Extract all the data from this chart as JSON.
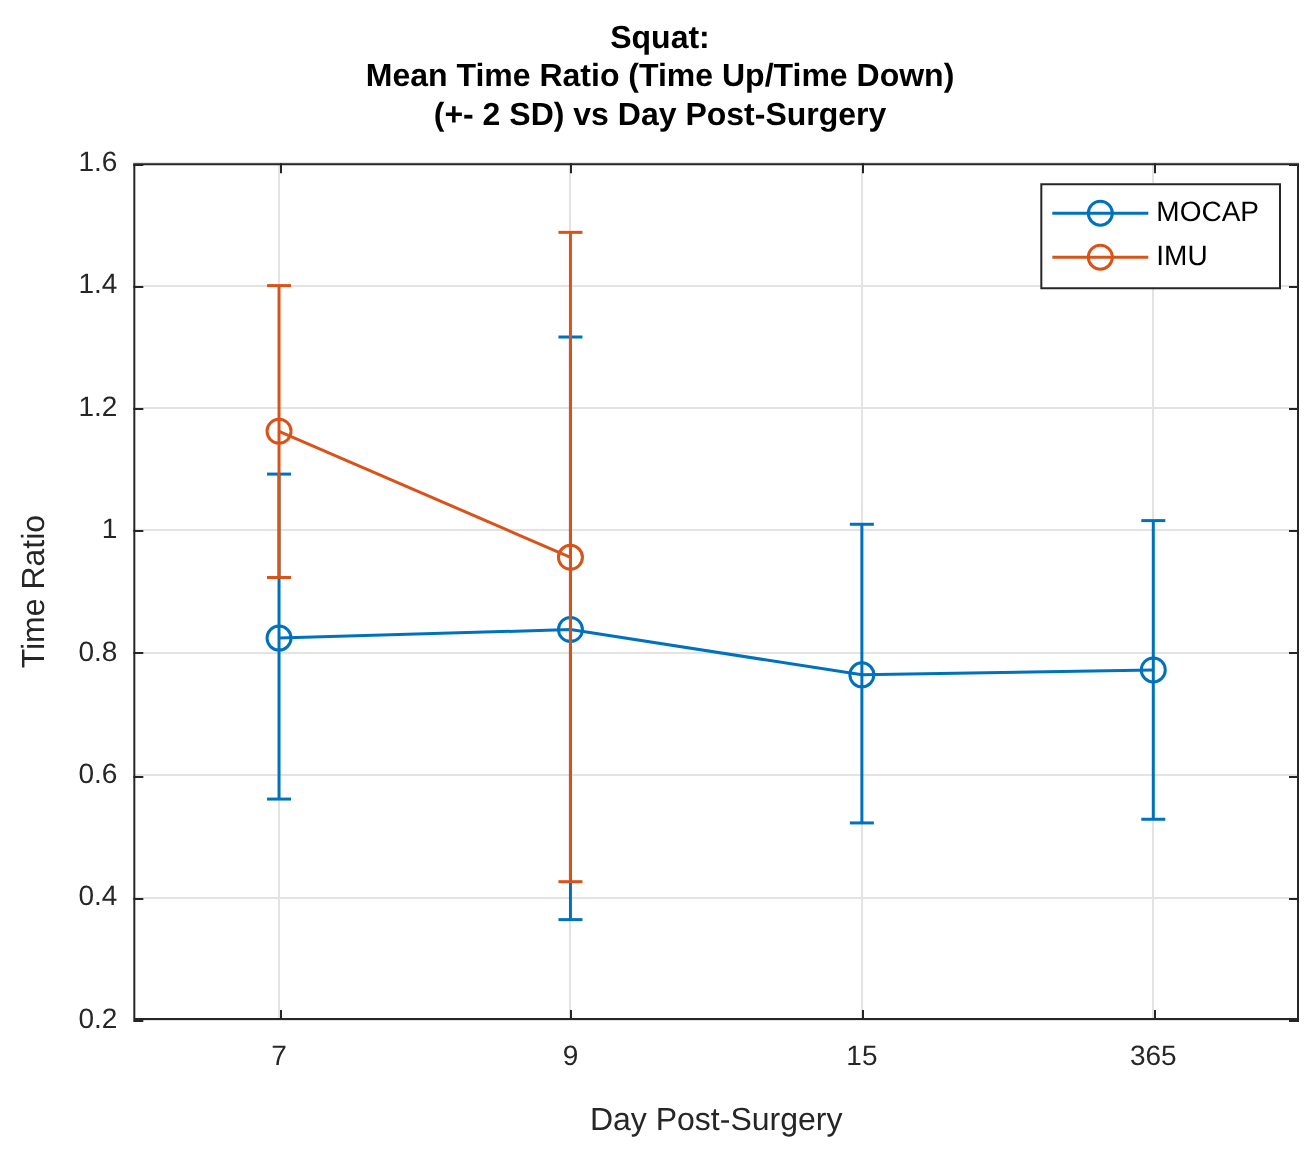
{
  "chart_data": {
    "type": "line",
    "title": "Squat:\nMean Time Ratio (Time Up/Time Down)\n(+- 2 SD) vs Day Post-Surgery",
    "xlabel": "Day Post-Surgery",
    "ylabel": "Time Ratio",
    "categories": [
      "7",
      "9",
      "15",
      "365"
    ],
    "series": [
      {
        "name": "MOCAP",
        "color": "#0072bd",
        "values": [
          0.824,
          0.838,
          0.764,
          0.772
        ],
        "errors": [
          [
            0.561,
            1.092
          ],
          [
            0.364,
            1.316
          ],
          [
            0.522,
            1.01
          ],
          [
            0.528,
            1.016
          ]
        ]
      },
      {
        "name": "IMU",
        "color": "#d95319",
        "values": [
          1.162,
          0.956,
          null,
          null
        ],
        "errors": [
          [
            0.923,
            1.4
          ],
          [
            0.426,
            1.487
          ],
          null,
          null
        ]
      }
    ],
    "ylim": [
      0.2,
      1.6
    ],
    "yticks": [
      0.2,
      0.4,
      0.6,
      0.8,
      1,
      1.2,
      1.4,
      1.6
    ],
    "grid": true,
    "legend": "top right",
    "marker": "circle",
    "line_style": "solid"
  }
}
